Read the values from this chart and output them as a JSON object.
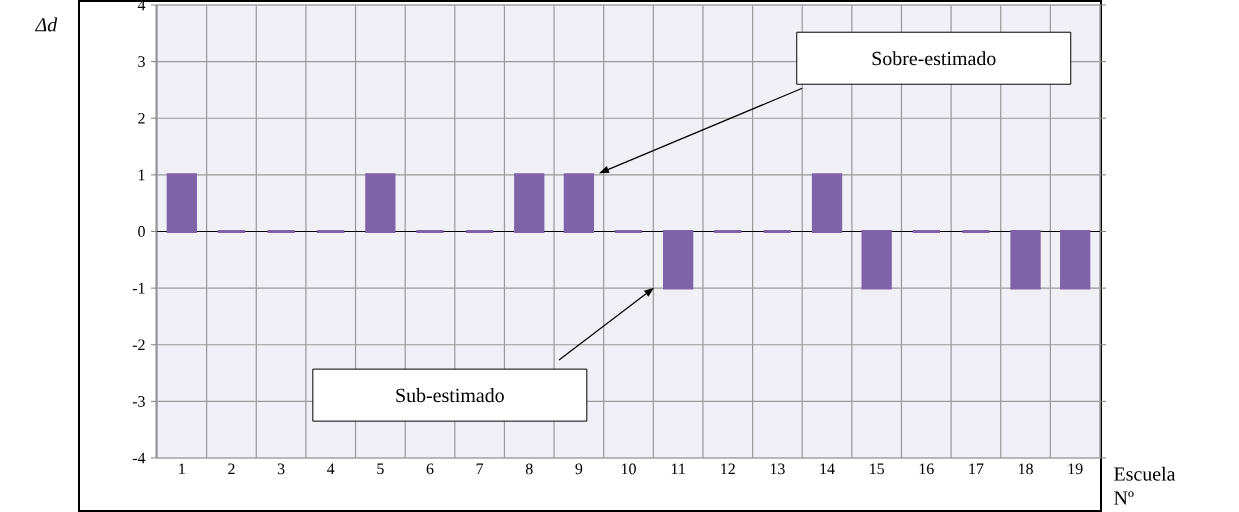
{
  "chart_data": {
    "type": "bar",
    "categories": [
      "1",
      "2",
      "3",
      "4",
      "5",
      "6",
      "7",
      "8",
      "9",
      "10",
      "11",
      "12",
      "13",
      "14",
      "15",
      "16",
      "17",
      "18",
      "19"
    ],
    "values": [
      1,
      0,
      0,
      0,
      1,
      0,
      0,
      1,
      1,
      0,
      -1,
      0,
      0,
      1,
      -1,
      0,
      0,
      -1,
      -1
    ],
    "color": "#7f63a8",
    "ylim": [
      -4,
      4
    ],
    "yticks": [
      -4,
      -3,
      -2,
      -1,
      0,
      1,
      2,
      3,
      4
    ],
    "ylabel": "Δd",
    "xlabel": "Escuela Nº",
    "grid": true,
    "annotations": [
      "Sobre-estimado",
      "Sub-estimado"
    ]
  }
}
